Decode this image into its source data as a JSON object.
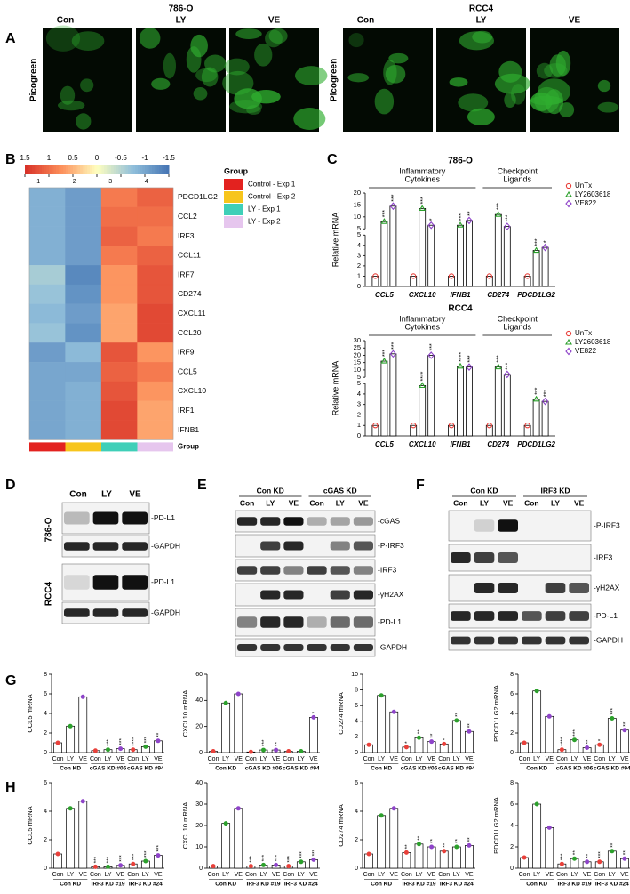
{
  "figure": {
    "A": {
      "label": "A",
      "cells": [
        {
          "title": "786-O",
          "ylabel": "Picogreen",
          "lanes": [
            "Con",
            "LY",
            "VE"
          ]
        },
        {
          "title": "RCC4",
          "ylabel": "Picogreen",
          "lanes": [
            "Con",
            "LY",
            "VE"
          ]
        }
      ]
    },
    "B": {
      "label": "B",
      "clim": [
        1.5,
        -1.5
      ],
      "cticks": [
        1.5,
        1,
        0.5,
        0,
        -0.5,
        -1,
        -1.5
      ],
      "columns": [
        "1",
        "2",
        "3",
        "4"
      ],
      "rows": [
        "PDCD1LG2",
        "CCL2",
        "IRF3",
        "CCL11",
        "IRF7",
        "CD274",
        "CXCL11",
        "CCL20",
        "IRF9",
        "CCL5",
        "CXCL10",
        "IRF1",
        "IFNB1"
      ],
      "values": [
        [
          -0.9,
          -1.1,
          0.9,
          1.1
        ],
        [
          -0.9,
          -1.1,
          1.0,
          1.0
        ],
        [
          -0.9,
          -1.1,
          1.1,
          0.9
        ],
        [
          -0.9,
          -1.1,
          0.9,
          1.1
        ],
        [
          -0.6,
          -1.3,
          0.7,
          1.2
        ],
        [
          -0.7,
          -1.2,
          0.7,
          1.2
        ],
        [
          -0.8,
          -1.1,
          0.6,
          1.3
        ],
        [
          -0.7,
          -1.2,
          0.6,
          1.3
        ],
        [
          -1.1,
          -0.8,
          1.2,
          0.7
        ],
        [
          -1.0,
          -1.0,
          1.1,
          0.9
        ],
        [
          -1.0,
          -0.9,
          1.2,
          0.7
        ],
        [
          -1.0,
          -0.9,
          1.3,
          0.6
        ],
        [
          -1.0,
          -0.9,
          1.3,
          0.6
        ]
      ],
      "legend_title": "Group",
      "groups": [
        {
          "name": "Control - Exp 1",
          "color": "#e3221f"
        },
        {
          "name": "Control - Exp 2",
          "color": "#f7c51c"
        },
        {
          "name": "LY - Exp 1",
          "color": "#3fcfb8"
        },
        {
          "name": "LY - Exp 2",
          "color": "#e6c6ee"
        }
      ],
      "group_row_label": "Group"
    },
    "C": {
      "label": "C",
      "charts": [
        {
          "type": "bar",
          "title": "786-O",
          "ylabel": "Relative mRNA",
          "categories": [
            "CCL5",
            "CXCL10",
            "IFNB1",
            "CD274",
            "PDCD1LG2"
          ],
          "category_groups": [
            [
              "Inflammatory",
              "Cytokines"
            ],
            [
              "Checkpoint",
              "Ligands"
            ]
          ],
          "ylim": [
            0,
            20
          ],
          "ybreak": 5,
          "yticks": [
            0,
            1,
            2,
            3,
            4,
            5,
            10,
            15,
            20
          ],
          "series": [
            {
              "name": "UnTx",
              "color": "#e8403a",
              "marker": "circle",
              "values": [
                1,
                1,
                1,
                1,
                1
              ]
            },
            {
              "name": "LY2603618",
              "color": "#2ca02c",
              "marker": "triangle",
              "values": [
                8,
                13.5,
                6.5,
                11,
                3.5
              ],
              "stars": [
                "***",
                "***",
                "***",
                "***",
                "***"
              ]
            },
            {
              "name": "VE822",
              "color": "#8e44c9",
              "marker": "diamond",
              "values": [
                14.5,
                6.5,
                8.5,
                6,
                3.8
              ],
              "stars": [
                "***",
                "*",
                "**",
                "***",
                "*"
              ]
            }
          ]
        },
        {
          "type": "bar",
          "title": "RCC4",
          "ylabel": "Relative mRNA",
          "categories": [
            "CCL5",
            "CXCL10",
            "IFNB1",
            "CD274",
            "PDCD1LG2"
          ],
          "category_groups": [
            [
              "Inflammatory",
              "Cytokines"
            ],
            [
              "Checkpoint",
              "Ligands"
            ]
          ],
          "ylim": [
            0,
            30
          ],
          "ybreak": 5,
          "yticks": [
            0,
            1,
            2,
            3,
            4,
            5,
            10,
            15,
            20,
            25,
            30
          ],
          "series": [
            {
              "name": "UnTx",
              "color": "#e8403a",
              "marker": "circle",
              "values": [
                1,
                1,
                1,
                1,
                1
              ]
            },
            {
              "name": "LY2603618",
              "color": "#2ca02c",
              "marker": "triangle",
              "values": [
                16,
                4.8,
                12.5,
                12,
                3.5
              ],
              "stars": [
                "***",
                "****",
                "****",
                "***",
                "***"
              ]
            },
            {
              "name": "VE822",
              "color": "#8e44c9",
              "marker": "diamond",
              "values": [
                21,
                20,
                12,
                7,
                3.3
              ],
              "stars": [
                "***",
                "***",
                "***",
                "***",
                "***"
              ]
            }
          ]
        }
      ]
    },
    "D": {
      "label": "D",
      "lanes": [
        "Con",
        "LY",
        "VE"
      ],
      "rows": [
        {
          "name": "786-O",
          "bands": [
            "-PD-L1",
            "-GAPDH"
          ]
        },
        {
          "name": "RCC4",
          "bands": [
            "-PD-L1",
            "-GAPDH"
          ]
        }
      ]
    },
    "E": {
      "label": "E",
      "groups": [
        "Con KD",
        "cGAS KD"
      ],
      "lanes": [
        "Con",
        "LY",
        "VE",
        "Con",
        "LY",
        "VE"
      ],
      "bands": [
        "-cGAS",
        "-P-IRF3",
        "-IRF3",
        "-γH2AX",
        "-PD-L1",
        "-GAPDH"
      ]
    },
    "F": {
      "label": "F",
      "groups": [
        "Con KD",
        "IRF3 KD"
      ],
      "lanes": [
        "Con",
        "LY",
        "VE",
        "Con",
        "LY",
        "VE"
      ],
      "bands": [
        "-P-IRF3",
        "-IRF3",
        "-γH2AX",
        "-PD-L1",
        "-GAPDH"
      ]
    },
    "G": {
      "label": "G",
      "charts": [
        {
          "type": "bar",
          "ylabel": "CCL5 mRNA",
          "ylim": [
            0,
            8
          ],
          "yticks": [
            0,
            2,
            4,
            6,
            8
          ],
          "lanes": [
            "Con",
            "LY",
            "VE",
            "Con",
            "LY",
            "VE",
            "Con",
            "LY",
            "VE"
          ],
          "groups": [
            "Con KD",
            "cGAS KD #06",
            "cGAS KD #94"
          ],
          "lane_colors": [
            "#e8403a",
            "#2ca02c",
            "#8e44c9"
          ],
          "values": [
            1,
            2.7,
            5.7,
            0.2,
            0.3,
            0.4,
            0.3,
            0.6,
            1.2
          ],
          "stars": [
            null,
            null,
            null,
            null,
            "***",
            "***",
            "****",
            "***",
            "**"
          ]
        },
        {
          "type": "bar",
          "ylabel": "CXCL10 mRNA",
          "ylim": [
            0,
            60
          ],
          "yticks": [
            0,
            20,
            40,
            60
          ],
          "lanes": [
            "Con",
            "LY",
            "VE",
            "Con",
            "LY",
            "VE",
            "Con",
            "LY",
            "VE"
          ],
          "groups": [
            "Con KD",
            "cGAS KD #06",
            "cGAS KD #94"
          ],
          "lane_colors": [
            "#e8403a",
            "#2ca02c",
            "#8e44c9"
          ],
          "values": [
            1,
            38,
            45,
            0.5,
            2,
            2,
            1,
            1,
            27
          ],
          "stars": [
            null,
            null,
            null,
            null,
            "***",
            "**",
            null,
            null,
            "*"
          ]
        },
        {
          "type": "bar",
          "ylabel": "CD274 mRNA",
          "ylim": [
            0,
            10
          ],
          "yticks": [
            0,
            2,
            4,
            6,
            8,
            10
          ],
          "lanes": [
            "Con",
            "LY",
            "VE",
            "Con",
            "LY",
            "VE",
            "Con",
            "LY",
            "VE"
          ],
          "groups": [
            "Con KD",
            "cGAS KD #06",
            "cGAS KD #94"
          ],
          "lane_colors": [
            "#e8403a",
            "#2ca02c",
            "#8e44c9"
          ],
          "values": [
            1,
            7.3,
            5.2,
            0.7,
            1.9,
            1.4,
            1.1,
            4.1,
            2.7
          ],
          "stars": [
            null,
            null,
            null,
            "*",
            "**",
            "**",
            "*",
            "**",
            "**"
          ]
        },
        {
          "type": "bar",
          "ylabel": "PDCD1LG2 mRNA",
          "ylim": [
            0,
            8
          ],
          "yticks": [
            0,
            2,
            4,
            6,
            8
          ],
          "lanes": [
            "Con",
            "LY",
            "VE",
            "Con",
            "LY",
            "VE",
            "Con",
            "LY",
            "VE"
          ],
          "groups": [
            "Con KD",
            "cGAS KD #06",
            "cGAS KD #94"
          ],
          "lane_colors": [
            "#e8403a",
            "#2ca02c",
            "#8e44c9"
          ],
          "values": [
            1,
            6.3,
            3.7,
            0.3,
            1.3,
            0.5,
            0.8,
            3.5,
            2.3
          ],
          "stars": [
            null,
            null,
            null,
            "****",
            "***",
            "**",
            "*",
            "***",
            "**"
          ]
        }
      ]
    },
    "H": {
      "label": "H",
      "charts": [
        {
          "type": "bar",
          "ylabel": "CCL5 mRNA",
          "ylim": [
            0,
            6
          ],
          "yticks": [
            0,
            2,
            4,
            6
          ],
          "lanes": [
            "Con",
            "LY",
            "VE",
            "Con",
            "LY",
            "VE",
            "Con",
            "LY",
            "VE"
          ],
          "groups": [
            "Con KD",
            "IRF3 KD #19",
            "IRF3 KD #24"
          ],
          "lane_colors": [
            "#e8403a",
            "#2ca02c",
            "#8e44c9"
          ],
          "values": [
            1,
            4.2,
            4.7,
            0.1,
            0.1,
            0.2,
            0.3,
            0.5,
            0.9
          ],
          "stars": [
            null,
            null,
            null,
            "***",
            "***",
            "***",
            "***",
            "***",
            "***"
          ]
        },
        {
          "type": "bar",
          "ylabel": "CXCL10 mRNA",
          "ylim": [
            0,
            40
          ],
          "yticks": [
            0,
            10,
            20,
            30,
            40
          ],
          "lanes": [
            "Con",
            "LY",
            "VE",
            "Con",
            "LY",
            "VE",
            "Con",
            "LY",
            "VE"
          ],
          "groups": [
            "Con KD",
            "IRF3 KD #19",
            "IRF3 KD #24"
          ],
          "lane_colors": [
            "#e8403a",
            "#2ca02c",
            "#8e44c9"
          ],
          "values": [
            1,
            21,
            28,
            1,
            1.5,
            1.5,
            1,
            3,
            4
          ],
          "stars": [
            null,
            null,
            null,
            "***",
            "***",
            "***",
            "***",
            "***",
            "***"
          ]
        },
        {
          "type": "bar",
          "ylabel": "CD274 mRNA",
          "ylim": [
            0,
            6
          ],
          "yticks": [
            0,
            2,
            4,
            6
          ],
          "lanes": [
            "Con",
            "LY",
            "VE",
            "Con",
            "LY",
            "VE",
            "Con",
            "LY",
            "VE"
          ],
          "groups": [
            "Con KD",
            "IRF3 KD #19",
            "IRF3 KD #24"
          ],
          "lane_colors": [
            "#e8403a",
            "#2ca02c",
            "#8e44c9"
          ],
          "values": [
            1,
            3.7,
            4.2,
            1.1,
            1.7,
            1.5,
            1.2,
            1.5,
            1.6
          ],
          "stars": [
            null,
            null,
            null,
            "**",
            "**",
            "**",
            "**",
            "**",
            "**"
          ]
        },
        {
          "type": "bar",
          "ylabel": "PDCD1LG2 mRNA",
          "ylim": [
            0,
            8
          ],
          "yticks": [
            0,
            2,
            4,
            6,
            8
          ],
          "lanes": [
            "Con",
            "LY",
            "VE",
            "Con",
            "LY",
            "VE",
            "Con",
            "LY",
            "VE"
          ],
          "groups": [
            "Con KD",
            "IRF3 KD #19",
            "IRF3 KD #24"
          ],
          "lane_colors": [
            "#e8403a",
            "#2ca02c",
            "#8e44c9"
          ],
          "values": [
            1,
            6,
            3.8,
            0.4,
            0.9,
            0.6,
            0.6,
            1.6,
            0.9
          ],
          "stars": [
            null,
            null,
            null,
            "***",
            "**",
            "**",
            "***",
            "**",
            "**"
          ]
        }
      ]
    }
  }
}
